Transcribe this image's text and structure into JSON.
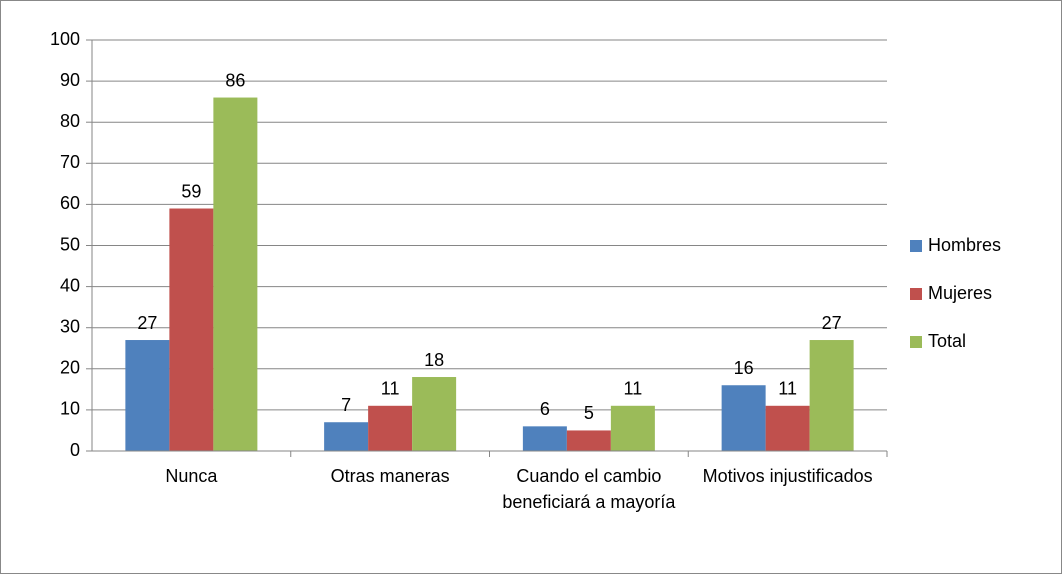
{
  "chart_data": {
    "type": "bar",
    "categories": [
      "Nunca",
      "Otras maneras",
      "Cuando el cambio beneficiará a mayoría",
      "Motivos injustificados"
    ],
    "series": [
      {
        "name": "Hombres",
        "color": "#4f81bd",
        "values": [
          27,
          7,
          6,
          16
        ]
      },
      {
        "name": "Mujeres",
        "color": "#c0504d",
        "values": [
          59,
          11,
          5,
          11
        ]
      },
      {
        "name": "Total",
        "color": "#9bbb59",
        "values": [
          86,
          18,
          11,
          27
        ]
      }
    ],
    "ylim": [
      0,
      100
    ],
    "yticks": [
      0,
      10,
      20,
      30,
      40,
      50,
      60,
      70,
      80,
      90,
      100
    ],
    "grid": true,
    "legend": "right"
  }
}
